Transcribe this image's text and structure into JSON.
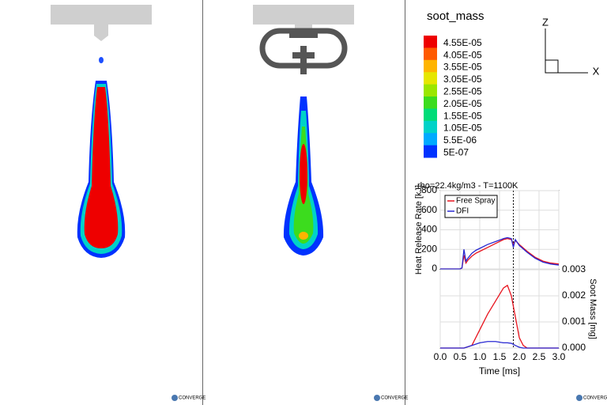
{
  "colorbar": {
    "title": "soot_mass",
    "labels": [
      "4.55E-05",
      "4.05E-05",
      "3.55E-05",
      "3.05E-05",
      "2.55E-05",
      "2.05E-05",
      "1.55E-05",
      "1.05E-05",
      "5.5E-06",
      "5E-07"
    ],
    "colors": [
      "#ee0000",
      "#ff5a00",
      "#ffb400",
      "#e6e600",
      "#9be600",
      "#3cdc1e",
      "#00dc78",
      "#00d2c8",
      "#00aaff",
      "#0032ff"
    ]
  },
  "triad": {
    "z": "Z",
    "x": "X"
  },
  "logo": "CONVERGE",
  "chart_data": [
    {
      "type": "line",
      "title": "rho=22.4kg/m3 - T=1100K",
      "ylabel": "Heat Release Rate [kJ]",
      "x": [
        0,
        0.5,
        0.55,
        0.6,
        0.65,
        0.7,
        0.8,
        0.9,
        1.0,
        1.2,
        1.4,
        1.6,
        1.7,
        1.8,
        1.85,
        1.9,
        2.0,
        2.2,
        2.4,
        2.6,
        2.8,
        3.0
      ],
      "xlim": [
        0,
        3
      ],
      "ylim": [
        0,
        800
      ],
      "yticks": [
        0,
        200,
        400,
        600,
        800
      ],
      "vline": 1.85,
      "grid": true,
      "legend": "upper left",
      "series": [
        {
          "name": "Free Spray",
          "color": "#e8141e",
          "values": [
            0,
            0,
            10,
            140,
            60,
            90,
            130,
            160,
            180,
            220,
            260,
            300,
            310,
            300,
            250,
            290,
            250,
            180,
            120,
            80,
            60,
            50
          ]
        },
        {
          "name": "DFI",
          "color": "#2828d2",
          "values": [
            0,
            0,
            10,
            200,
            80,
            110,
            160,
            190,
            210,
            250,
            280,
            310,
            320,
            310,
            220,
            300,
            240,
            170,
            110,
            70,
            50,
            40
          ]
        }
      ]
    },
    {
      "type": "line",
      "xlabel": "Time [ms]",
      "y2label": "Soot Mass [mg]",
      "x": [
        0,
        0.6,
        0.8,
        1.0,
        1.2,
        1.4,
        1.6,
        1.7,
        1.8,
        1.9,
        2.0,
        2.1,
        2.2,
        3.0
      ],
      "xlim": [
        0,
        3
      ],
      "xticks": [
        {
          "value": 0,
          "label": "0.0"
        },
        {
          "value": 0.5,
          "label": "0.5"
        },
        {
          "value": 1,
          "label": "1.0"
        },
        {
          "value": 1.5,
          "label": "1.5"
        },
        {
          "value": 2,
          "label": "2.0"
        },
        {
          "value": 2.5,
          "label": "2.5"
        },
        {
          "value": 3,
          "label": "3.0"
        }
      ],
      "y2lim": [
        0,
        0.003
      ],
      "y2ticks": [
        {
          "value": 0,
          "label": "0.000"
        },
        {
          "value": 0.001,
          "label": "0.001"
        },
        {
          "value": 0.002,
          "label": "0.002"
        },
        {
          "value": 0.003,
          "label": "0.003"
        }
      ],
      "vline": 1.85,
      "grid": true,
      "series": [
        {
          "name": "Free Spray",
          "color": "#e8141e",
          "axis": "y2",
          "values": [
            0,
            0,
            0.0001,
            0.0007,
            0.0013,
            0.0018,
            0.0023,
            0.0024,
            0.002,
            0.0012,
            0.0004,
            0.0001,
            0,
            0
          ]
        },
        {
          "name": "DFI",
          "color": "#2828d2",
          "axis": "y2",
          "values": [
            0,
            0,
            0.0001,
            0.0002,
            0.00025,
            0.00025,
            0.0002,
            0.0002,
            0.00018,
            0.0001,
            3e-05,
            0,
            0,
            0
          ]
        }
      ]
    }
  ]
}
